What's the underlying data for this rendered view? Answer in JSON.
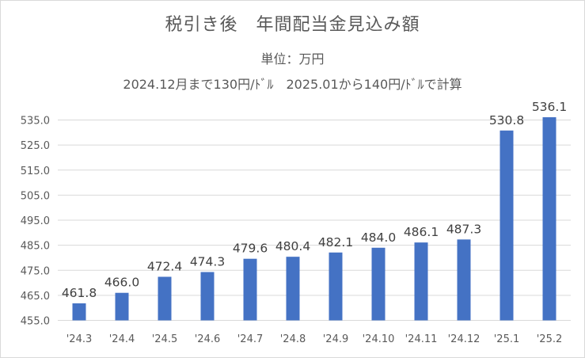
{
  "chart_data": {
    "type": "bar",
    "title": "税引き後　年間配当金見込み額",
    "subtitle": "単位：万円",
    "note": "2024.12月まで130円/ﾄﾞﾙ　2025.01から140円/ﾄﾞﾙで計算",
    "categories": [
      "'24.3",
      "'24.4",
      "'24.5",
      "'24.6",
      "'24.7",
      "'24.8",
      "'24.9",
      "'24.10",
      "'24.11",
      "'24.12",
      "'25.1",
      "'25.2"
    ],
    "values": [
      461.8,
      466.0,
      472.4,
      474.3,
      479.6,
      480.4,
      482.1,
      484.0,
      486.1,
      487.3,
      530.8,
      536.1
    ],
    "value_labels": [
      "461.8",
      "466.0",
      "472.4",
      "474.3",
      "479.6",
      "480.4",
      "482.1",
      "484.0",
      "486.1",
      "487.3",
      "530.8",
      "536.1"
    ],
    "y_ticks": [
      "455.0",
      "465.0",
      "475.0",
      "485.0",
      "495.0",
      "505.0",
      "515.0",
      "525.0",
      "535.0"
    ],
    "ylim": [
      455,
      540
    ],
    "grid": true,
    "legend": "none",
    "bar_color": "#4472c4"
  }
}
